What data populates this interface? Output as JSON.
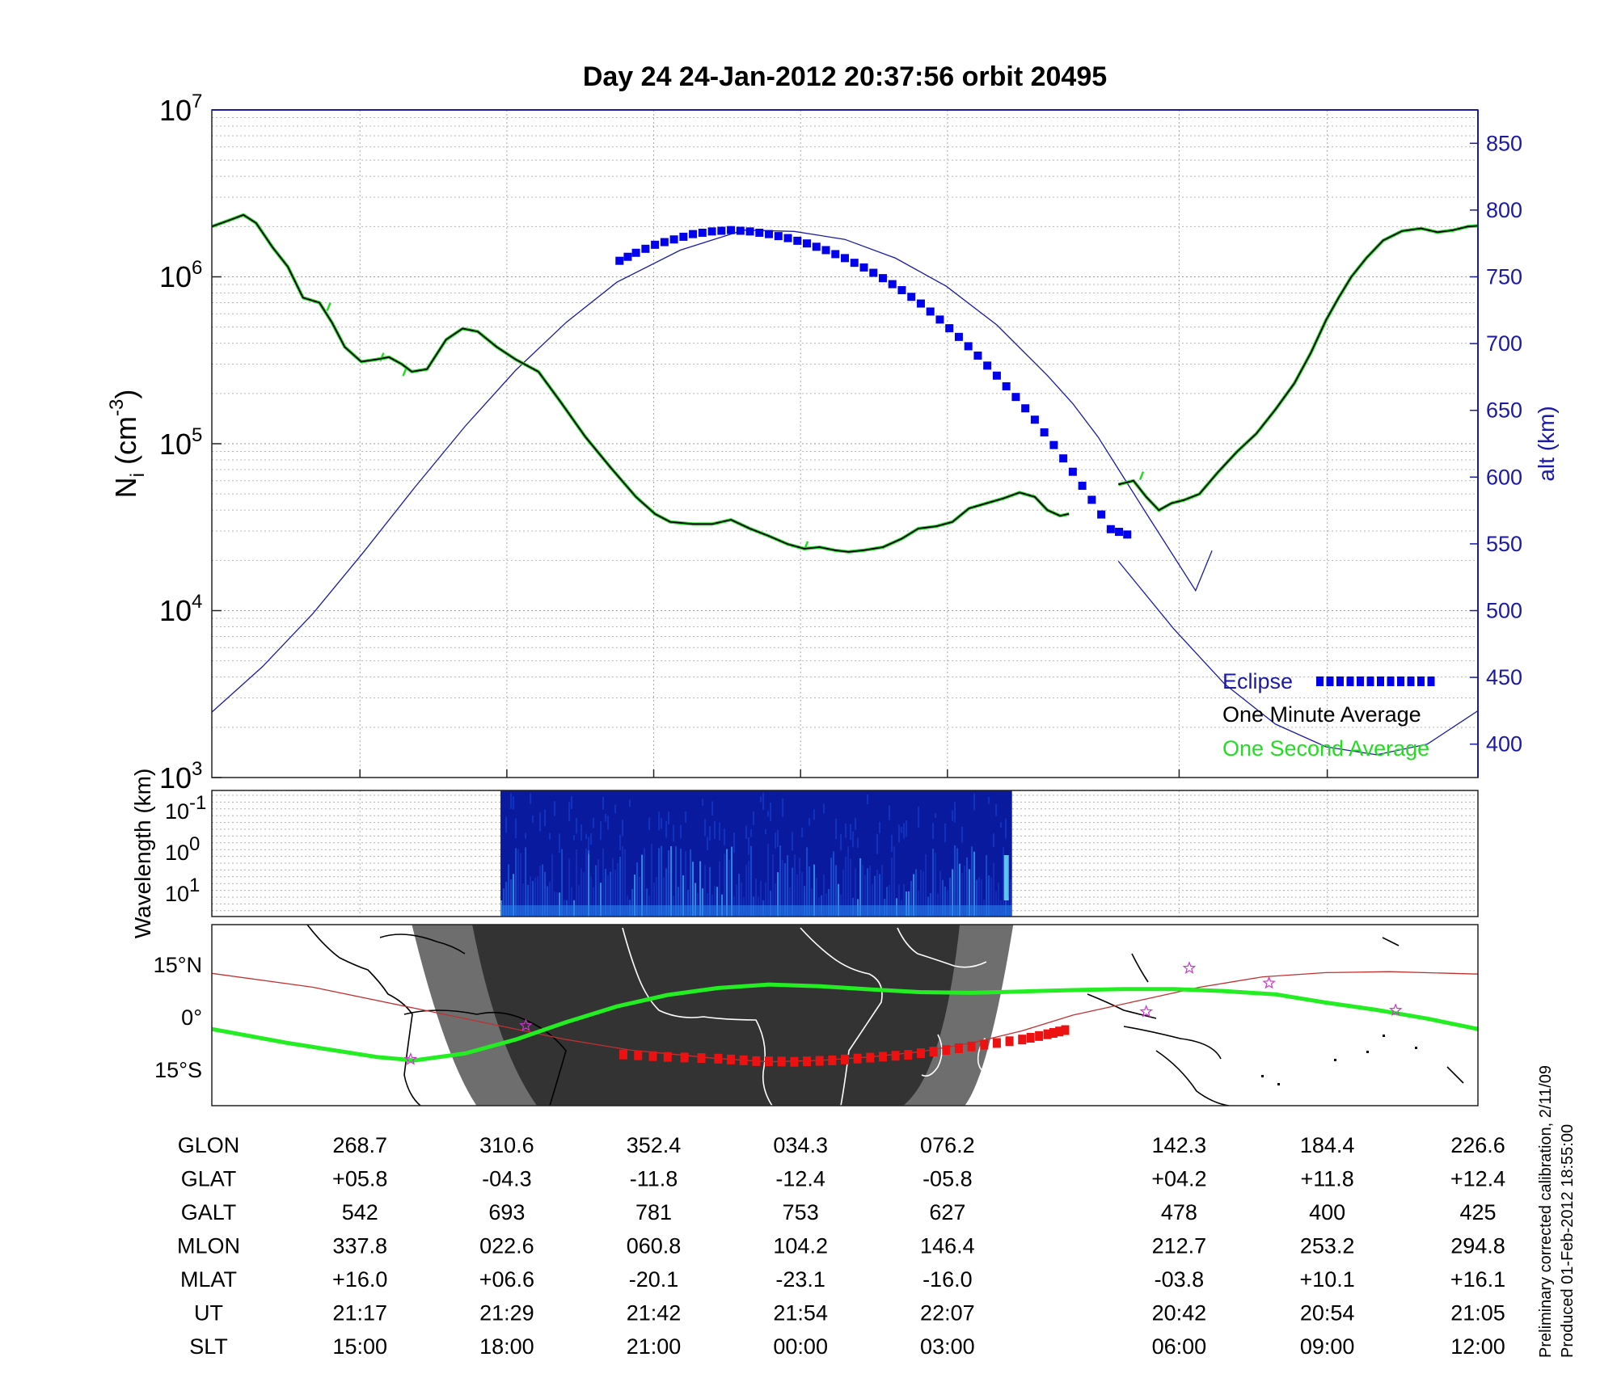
{
  "title": "Day 24  24-Jan-2012 20:37:56   orbit 20495",
  "colors": {
    "eclipse": "#0000ee",
    "one_minute": "#000000",
    "one_second": "#22dd22",
    "altitude": "#1a1aa6",
    "track_eclipse": "#ee1111",
    "magnetic_equator": "#22ee22",
    "night": "#333333",
    "twilight": "#6e6e6e"
  },
  "chart_data": [
    {
      "id": "density",
      "type": "line",
      "ylabel_main": "N",
      "ylabel_sub": "i",
      "ylabel_unit": " (cm",
      "ylabel_exp": "-3",
      "ylabel_close": ")",
      "yscale": "log",
      "ylim": [
        1000,
        10000000
      ],
      "ytick_base": "10",
      "yticks_exp": [
        "3",
        "4",
        "5",
        "6",
        "7"
      ],
      "y2label": "alt (km)",
      "y2lim": [
        375,
        875
      ],
      "y2ticks": [
        "400",
        "450",
        "500",
        "550",
        "600",
        "650",
        "700",
        "750",
        "800",
        "850"
      ],
      "xlim": [
        0,
        1000
      ],
      "legend": {
        "placement": "bottom-right",
        "eclipse": "Eclipse",
        "one_minute": "One Minute Average",
        "one_second": "One Second Average"
      },
      "ni_segments": [
        [
          [
            0,
            2000000
          ],
          [
            15,
            2200000
          ],
          [
            25,
            2350000
          ],
          [
            35,
            2100000
          ],
          [
            48,
            1500000
          ],
          [
            60,
            1150000
          ],
          [
            72,
            750000
          ],
          [
            85,
            700000
          ],
          [
            95,
            530000
          ],
          [
            105,
            380000
          ],
          [
            118,
            310000
          ],
          [
            130,
            320000
          ],
          [
            140,
            330000
          ],
          [
            150,
            300000
          ],
          [
            158,
            270000
          ],
          [
            170,
            280000
          ],
          [
            185,
            420000
          ],
          [
            198,
            490000
          ],
          [
            210,
            470000
          ],
          [
            225,
            380000
          ],
          [
            240,
            320000
          ],
          [
            258,
            270000
          ],
          [
            275,
            180000
          ],
          [
            295,
            110000
          ],
          [
            315,
            72000
          ],
          [
            335,
            48000
          ],
          [
            350,
            38000
          ],
          [
            362,
            34000
          ],
          [
            380,
            33000
          ],
          [
            395,
            33000
          ],
          [
            410,
            35000
          ],
          [
            425,
            31000
          ],
          [
            440,
            28000
          ],
          [
            455,
            25000
          ],
          [
            468,
            23500
          ],
          [
            480,
            24000
          ],
          [
            492,
            23000
          ],
          [
            503,
            22500
          ],
          [
            515,
            23000
          ],
          [
            530,
            24000
          ],
          [
            545,
            27000
          ],
          [
            558,
            31000
          ],
          [
            572,
            32000
          ],
          [
            585,
            34000
          ],
          [
            598,
            41000
          ],
          [
            612,
            44000
          ],
          [
            625,
            47000
          ],
          [
            638,
            51000
          ],
          [
            650,
            48000
          ],
          [
            660,
            40000
          ],
          [
            670,
            37000
          ],
          [
            677,
            38000
          ]
        ],
        [
          [
            716,
            57000
          ],
          [
            728,
            60000
          ],
          [
            738,
            48000
          ],
          [
            748,
            40000
          ],
          [
            758,
            44000
          ],
          [
            768,
            46000
          ],
          [
            780,
            50000
          ],
          [
            795,
            68000
          ],
          [
            810,
            90000
          ],
          [
            825,
            115000
          ],
          [
            840,
            160000
          ],
          [
            855,
            230000
          ],
          [
            868,
            350000
          ],
          [
            880,
            550000
          ],
          [
            890,
            750000
          ],
          [
            900,
            1000000
          ],
          [
            912,
            1300000
          ],
          [
            925,
            1650000
          ],
          [
            940,
            1880000
          ],
          [
            955,
            1950000
          ],
          [
            968,
            1850000
          ],
          [
            980,
            1900000
          ],
          [
            992,
            2000000
          ],
          [
            1000,
            2020000
          ]
        ]
      ],
      "ni_second_spikes": [
        [
          93,
          700000
        ],
        [
          135,
          350000
        ],
        [
          153,
          285000
        ],
        [
          735,
          68000
        ],
        [
          470,
          26000
        ]
      ],
      "alt_segments": [
        [
          [
            0,
            424
          ],
          [
            40,
            458
          ],
          [
            80,
            498
          ],
          [
            120,
            544
          ],
          [
            160,
            592
          ],
          [
            200,
            638
          ],
          [
            240,
            680
          ],
          [
            280,
            716
          ],
          [
            320,
            746
          ],
          [
            370,
            770
          ],
          [
            420,
            785
          ],
          [
            460,
            784
          ],
          [
            500,
            778
          ],
          [
            540,
            764
          ],
          [
            580,
            743
          ],
          [
            620,
            714
          ],
          [
            660,
            676
          ],
          [
            680,
            655
          ],
          [
            700,
            630
          ],
          [
            740,
            570
          ],
          [
            777,
            515
          ],
          [
            790,
            545
          ]
        ],
        [
          [
            716,
            537
          ],
          [
            760,
            486
          ],
          [
            800,
            445
          ],
          [
            840,
            415
          ],
          [
            880,
            398
          ],
          [
            920,
            392
          ],
          [
            960,
            400
          ],
          [
            1000,
            425
          ]
        ]
      ],
      "eclipse_alt": [
        [
          322,
          762
        ],
        [
          335,
          768
        ],
        [
          350,
          774
        ],
        [
          365,
          778
        ],
        [
          380,
          782
        ],
        [
          395,
          784
        ],
        [
          410,
          785
        ],
        [
          425,
          784
        ],
        [
          440,
          782
        ],
        [
          455,
          779
        ],
        [
          470,
          775
        ],
        [
          485,
          770
        ],
        [
          500,
          764
        ],
        [
          515,
          757
        ],
        [
          530,
          749
        ],
        [
          545,
          740
        ],
        [
          560,
          730
        ],
        [
          575,
          718
        ],
        [
          590,
          705
        ],
        [
          605,
          691
        ],
        [
          620,
          676
        ],
        [
          635,
          660
        ],
        [
          650,
          643
        ],
        [
          665,
          624
        ],
        [
          680,
          604
        ],
        [
          695,
          583
        ],
        [
          710,
          561
        ],
        [
          723,
          557
        ]
      ]
    },
    {
      "id": "spectrogram",
      "type": "heatmap",
      "ylabel": "Wavelength (km)",
      "ytick_base": "10",
      "yticks_exp": [
        "-1",
        "0",
        "1"
      ],
      "xlim": [
        0,
        1000
      ],
      "data_range": [
        228,
        632
      ]
    },
    {
      "id": "ground_track",
      "type": "line",
      "xlim": [
        0,
        1000
      ],
      "ylim": [
        -25,
        27
      ],
      "yticks": [
        "15°N",
        "0°",
        "15°S"
      ],
      "nightside": [
        158,
        633
      ],
      "umbra": [
        244,
        546
      ],
      "track": [
        [
          0,
          13
        ],
        [
          80,
          9
        ],
        [
          160,
          3
        ],
        [
          240,
          -3
        ],
        [
          280,
          -6
        ],
        [
          330,
          -9
        ],
        [
          400,
          -11.5
        ],
        [
          440,
          -12.4
        ],
        [
          480,
          -12
        ],
        [
          520,
          -11
        ],
        [
          560,
          -9.5
        ],
        [
          600,
          -7
        ],
        [
          640,
          -3.5
        ],
        [
          680,
          1
        ],
        [
          730,
          5
        ],
        [
          780,
          9
        ],
        [
          830,
          12
        ],
        [
          880,
          13.2
        ],
        [
          930,
          13.5
        ],
        [
          1000,
          12.8
        ]
      ],
      "track_eclipse": [
        [
          325,
          -10.3
        ],
        [
          360,
          -11
        ],
        [
          400,
          -11.5
        ],
        [
          430,
          -12.2
        ],
        [
          460,
          -12.4
        ],
        [
          490,
          -12
        ],
        [
          520,
          -11.2
        ],
        [
          550,
          -10.4
        ],
        [
          580,
          -9
        ],
        [
          610,
          -7.5
        ],
        [
          640,
          -6
        ],
        [
          660,
          -4.5
        ],
        [
          674,
          -3.3
        ]
      ],
      "magnetic_equator": [
        [
          0,
          -3
        ],
        [
          60,
          -7
        ],
        [
          130,
          -11
        ],
        [
          160,
          -12
        ],
        [
          200,
          -10
        ],
        [
          240,
          -6
        ],
        [
          280,
          -1
        ],
        [
          320,
          3.5
        ],
        [
          360,
          6.8
        ],
        [
          400,
          8.8
        ],
        [
          440,
          9.8
        ],
        [
          480,
          9.3
        ],
        [
          520,
          8.4
        ],
        [
          560,
          7.6
        ],
        [
          600,
          7.4
        ],
        [
          640,
          7.8
        ],
        [
          680,
          8.2
        ],
        [
          720,
          8.5
        ],
        [
          760,
          8.5
        ],
        [
          800,
          7.9
        ],
        [
          840,
          7
        ],
        [
          880,
          4.6
        ],
        [
          920,
          2.5
        ],
        [
          960,
          0
        ],
        [
          1000,
          -3
        ]
      ],
      "track_markers": [
        [
          157,
          -11.7
        ],
        [
          248,
          -2
        ],
        [
          738,
          2
        ],
        [
          772,
          14.5
        ],
        [
          835,
          10.2
        ],
        [
          935,
          2.4
        ]
      ]
    }
  ],
  "orbit_table": {
    "x_positions": [
      117,
      233,
      349,
      465,
      581,
      764,
      881,
      1000
    ],
    "rows": [
      {
        "label": "GLON",
        "values": [
          "268.7",
          "310.6",
          "352.4",
          "034.3",
          "076.2",
          "142.3",
          "184.4",
          "226.6"
        ]
      },
      {
        "label": "GLAT",
        "values": [
          "+05.8",
          "-04.3",
          "-11.8",
          "-12.4",
          "-05.8",
          "+04.2",
          "+11.8",
          "+12.4"
        ]
      },
      {
        "label": "GALT",
        "values": [
          "542",
          "693",
          "781",
          "753",
          "627",
          "478",
          "400",
          "425"
        ]
      },
      {
        "label": "MLON",
        "values": [
          "337.8",
          "022.6",
          "060.8",
          "104.2",
          "146.4",
          "212.7",
          "253.2",
          "294.8"
        ]
      },
      {
        "label": "MLAT",
        "values": [
          "+16.0",
          "+06.6",
          "-20.1",
          "-23.1",
          "-16.0",
          "-03.8",
          "+10.1",
          "+16.1"
        ]
      },
      {
        "label": "UT",
        "values": [
          "21:17",
          "21:29",
          "21:42",
          "21:54",
          "22:07",
          "20:42",
          "20:54",
          "21:05"
        ]
      },
      {
        "label": "SLT",
        "values": [
          "15:00",
          "18:00",
          "21:00",
          "00:00",
          "03:00",
          "06:00",
          "09:00",
          "12:00"
        ]
      }
    ]
  },
  "footnote": {
    "line1": "Preliminary corrected calibration, 2/11/09",
    "line2": "Produced 01-Feb-2012 18:55:00"
  }
}
